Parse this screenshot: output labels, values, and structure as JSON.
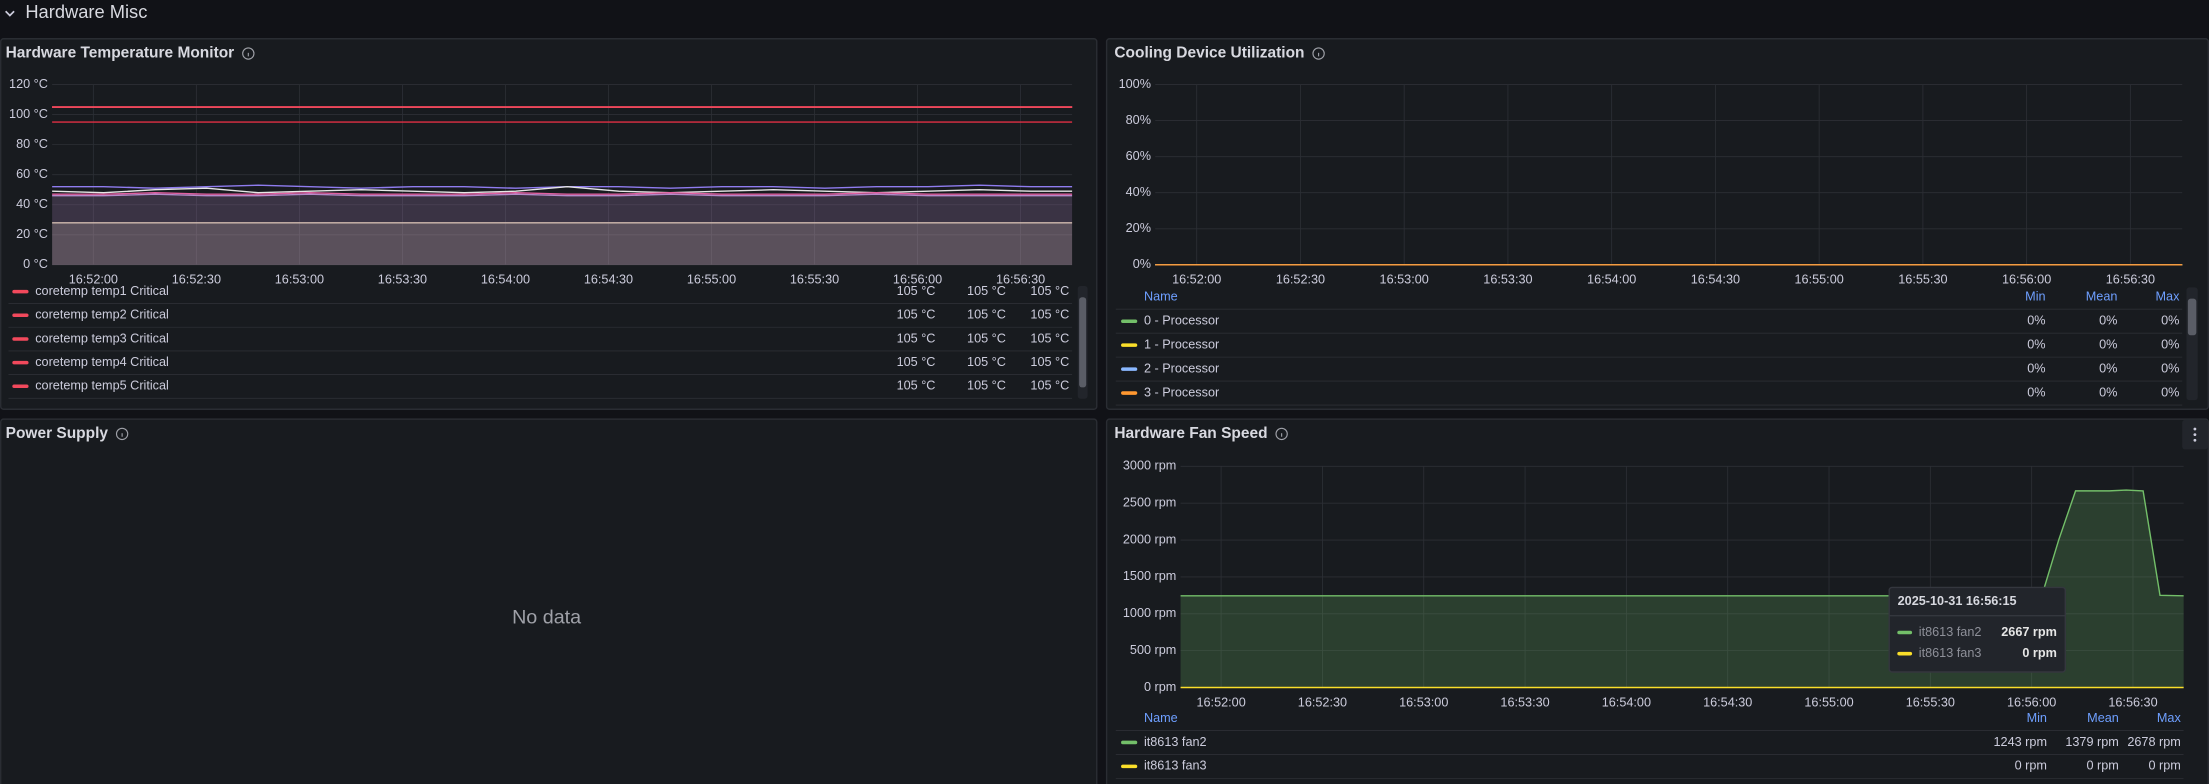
{
  "section_title": "Hardware Misc",
  "chart_data": [
    {
      "type": "line",
      "title": "Hardware Temperature Monitor",
      "xlim": [
        "16:51:48",
        "16:56:45"
      ],
      "xticks": [
        "16:52:00",
        "16:52:30",
        "16:53:00",
        "16:53:30",
        "16:54:00",
        "16:54:30",
        "16:55:00",
        "16:55:30",
        "16:56:00",
        "16:56:30"
      ],
      "ylim": [
        0,
        120
      ],
      "yticks": [
        {
          "value": 0,
          "label": "0 °C"
        },
        {
          "value": 20,
          "label": "20 °C"
        },
        {
          "value": 40,
          "label": "40 °C"
        },
        {
          "value": 60,
          "label": "60 °C"
        },
        {
          "value": 80,
          "label": "80 °C"
        },
        {
          "value": 100,
          "label": "100 °C"
        },
        {
          "value": 120,
          "label": "120 °C"
        }
      ],
      "grid": true,
      "x": [
        "16:51:48",
        "16:52:03",
        "16:52:18",
        "16:52:33",
        "16:52:48",
        "16:53:03",
        "16:53:18",
        "16:53:33",
        "16:53:48",
        "16:54:03",
        "16:54:18",
        "16:54:33",
        "16:54:48",
        "16:55:03",
        "16:55:18",
        "16:55:33",
        "16:55:48",
        "16:56:03",
        "16:56:18",
        "16:56:33",
        "16:56:45"
      ],
      "series": [
        {
          "name": "coretemp temp1 Critical",
          "color": "#f2495c",
          "values": [
            105,
            105,
            105,
            105,
            105,
            105,
            105,
            105,
            105,
            105,
            105,
            105,
            105,
            105,
            105,
            105,
            105,
            105,
            105,
            105,
            105
          ],
          "stats": [
            "105 °C",
            "105 °C",
            "105 °C"
          ]
        },
        {
          "name": "coretemp temp2 Critical",
          "color": "#f2495c",
          "values": [
            105,
            105,
            105,
            105,
            105,
            105,
            105,
            105,
            105,
            105,
            105,
            105,
            105,
            105,
            105,
            105,
            105,
            105,
            105,
            105,
            105
          ],
          "stats": [
            "105 °C",
            "105 °C",
            "105 °C"
          ]
        },
        {
          "name": "coretemp temp3 Critical",
          "color": "#f2495c",
          "values": [
            105,
            105,
            105,
            105,
            105,
            105,
            105,
            105,
            105,
            105,
            105,
            105,
            105,
            105,
            105,
            105,
            105,
            105,
            105,
            105,
            105
          ],
          "stats": [
            "105 °C",
            "105 °C",
            "105 °C"
          ]
        },
        {
          "name": "coretemp temp4 Critical",
          "color": "#f2495c",
          "values": [
            105,
            105,
            105,
            105,
            105,
            105,
            105,
            105,
            105,
            105,
            105,
            105,
            105,
            105,
            105,
            105,
            105,
            105,
            105,
            105,
            105
          ],
          "stats": [
            "105 °C",
            "105 °C",
            "105 °C"
          ]
        },
        {
          "name": "coretemp temp5 Critical",
          "color": "#f2495c",
          "values": [
            105,
            105,
            105,
            105,
            105,
            105,
            105,
            105,
            105,
            105,
            105,
            105,
            105,
            105,
            105,
            105,
            105,
            105,
            105,
            105,
            105
          ],
          "stats": [
            "105 °C",
            "105 °C",
            "105 °C"
          ]
        },
        {
          "color": "#e02f44",
          "values": [
            95,
            95,
            95,
            95,
            95,
            95,
            95,
            95,
            95,
            95,
            95,
            95,
            95,
            95,
            95,
            95,
            95,
            95,
            95,
            95,
            95
          ]
        },
        {
          "color": "#d8c9a8",
          "fill": true,
          "values": [
            28,
            28,
            28,
            28,
            28,
            28,
            28,
            28,
            28,
            28,
            28,
            28,
            28,
            28,
            28,
            28,
            28,
            28,
            28,
            28,
            28
          ]
        },
        {
          "color": "#b58ac9",
          "fill": true,
          "values": [
            46,
            46,
            47,
            46,
            46,
            47,
            46,
            46,
            46,
            47,
            46,
            46,
            47,
            46,
            46,
            46,
            47,
            46,
            46,
            46,
            46
          ]
        },
        {
          "color": "#8f7cf0",
          "values": [
            52,
            52,
            51,
            52,
            53,
            52,
            51,
            52,
            52,
            51,
            52,
            52,
            51,
            52,
            52,
            51,
            52,
            52,
            53,
            52,
            52
          ]
        },
        {
          "color": "#e6e6e6",
          "values": [
            49,
            48,
            50,
            51,
            48,
            49,
            50,
            49,
            48,
            49,
            52,
            49,
            48,
            49,
            50,
            49,
            48,
            49,
            50,
            49,
            49
          ]
        },
        {
          "color": "#e05fa0",
          "values": [
            47,
            47,
            48,
            47,
            47,
            48,
            47,
            47,
            47,
            48,
            47,
            47,
            48,
            47,
            47,
            47,
            48,
            47,
            47,
            47,
            47
          ]
        }
      ]
    },
    {
      "type": "line",
      "title": "Cooling Device Utilization",
      "xlim": [
        "16:51:48",
        "16:56:45"
      ],
      "xticks": [
        "16:52:00",
        "16:52:30",
        "16:53:00",
        "16:53:30",
        "16:54:00",
        "16:54:30",
        "16:55:00",
        "16:55:30",
        "16:56:00",
        "16:56:30"
      ],
      "ylim": [
        0,
        100
      ],
      "yticks": [
        {
          "value": 0,
          "label": "0%"
        },
        {
          "value": 20,
          "label": "20%"
        },
        {
          "value": 40,
          "label": "40%"
        },
        {
          "value": 60,
          "label": "60%"
        },
        {
          "value": 80,
          "label": "80%"
        },
        {
          "value": 100,
          "label": "100%"
        }
      ],
      "grid": true,
      "legend_columns": [
        "Name",
        "Min",
        "Mean",
        "Max"
      ],
      "x": [
        "16:51:48",
        "16:56:45"
      ],
      "series": [
        {
          "name": "0 - Processor",
          "color": "#73bf69",
          "values": [
            0,
            0
          ],
          "stats": [
            "0%",
            "0%",
            "0%"
          ]
        },
        {
          "name": "1 - Processor",
          "color": "#fade2a",
          "values": [
            0,
            0
          ],
          "stats": [
            "0%",
            "0%",
            "0%"
          ]
        },
        {
          "name": "2 - Processor",
          "color": "#8ab8ff",
          "values": [
            0,
            0
          ],
          "stats": [
            "0%",
            "0%",
            "0%"
          ]
        },
        {
          "name": "3 - Processor",
          "color": "#ff9830",
          "values": [
            0,
            0
          ],
          "stats": [
            "0%",
            "0%",
            "0%"
          ]
        }
      ]
    },
    {
      "type": "empty",
      "title": "Power Supply",
      "message": "No data"
    },
    {
      "type": "line",
      "title": "Hardware Fan Speed",
      "xlim": [
        "16:51:48",
        "16:56:45"
      ],
      "xticks": [
        "16:52:00",
        "16:52:30",
        "16:53:00",
        "16:53:30",
        "16:54:00",
        "16:54:30",
        "16:55:00",
        "16:55:30",
        "16:56:00",
        "16:56:30"
      ],
      "ylim": [
        0,
        3000
      ],
      "yticks": [
        {
          "value": 0,
          "label": "0 rpm"
        },
        {
          "value": 500,
          "label": "500 rpm"
        },
        {
          "value": 1000,
          "label": "1000 rpm"
        },
        {
          "value": 1500,
          "label": "1500 rpm"
        },
        {
          "value": 2000,
          "label": "2000 rpm"
        },
        {
          "value": 2500,
          "label": "2500 rpm"
        },
        {
          "value": 3000,
          "label": "3000 rpm"
        }
      ],
      "grid": true,
      "legend_columns": [
        "Name",
        "Min",
        "Mean",
        "Max"
      ],
      "x": [
        "16:51:48",
        "16:56:03",
        "16:56:08",
        "16:56:13",
        "16:56:18",
        "16:56:23",
        "16:56:28",
        "16:56:33",
        "16:56:38",
        "16:56:45"
      ],
      "series": [
        {
          "name": "it8613 fan2",
          "color": "#73bf69",
          "fill": true,
          "values": [
            1243,
            1243,
            2000,
            2667,
            2667,
            2667,
            2678,
            2667,
            1250,
            1243
          ],
          "stats": [
            "1243 rpm",
            "1379 rpm",
            "2678 rpm"
          ]
        },
        {
          "name": "it8613 fan3",
          "color": "#fade2a",
          "values": [
            0,
            0,
            0,
            0,
            0,
            0,
            0,
            0,
            0,
            0
          ],
          "stats": [
            "0 rpm",
            "0 rpm",
            "0 rpm"
          ]
        }
      ],
      "tooltip": {
        "title": "2025-10-31 16:56:15",
        "rows": [
          {
            "name": "it8613 fan2",
            "value": "2667 rpm"
          },
          {
            "name": "it8613 fan3",
            "value": "0 rpm"
          }
        ]
      }
    }
  ]
}
